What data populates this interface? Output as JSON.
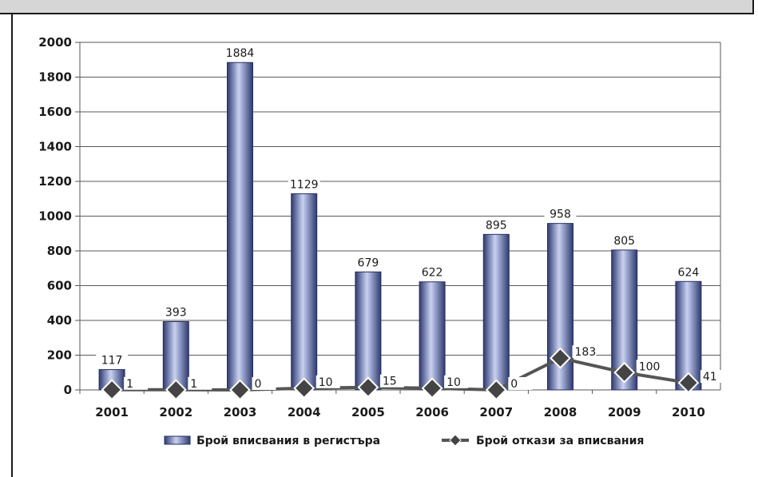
{
  "chart_data": {
    "type": "bar",
    "categories": [
      "2001",
      "2002",
      "2003",
      "2004",
      "2005",
      "2006",
      "2007",
      "2008",
      "2009",
      "2010"
    ],
    "series": [
      {
        "name": "Брой вписвания в регистъра",
        "type": "bar",
        "values": [
          117,
          393,
          1884,
          1129,
          679,
          622,
          895,
          958,
          805,
          624
        ]
      },
      {
        "name": "Брой откази за вписвания",
        "type": "line",
        "values": [
          1,
          1,
          0,
          10,
          15,
          10,
          0,
          183,
          100,
          41
        ]
      }
    ],
    "y_ticks": [
      "0",
      "200",
      "400",
      "600",
      "800",
      "1000",
      "1200",
      "1400",
      "1600",
      "1800",
      "2000"
    ],
    "ylim": [
      0,
      2000
    ],
    "grid": true,
    "legend_position": "bottom",
    "colors": {
      "bar_dark": "#3c4a84",
      "bar_light": "#c7cff0",
      "line": "#555555",
      "marker": "#444444"
    }
  }
}
